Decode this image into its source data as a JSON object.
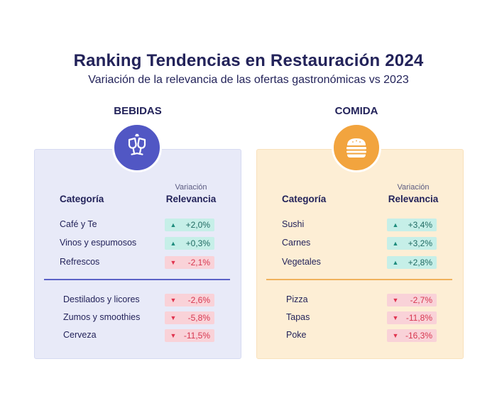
{
  "title": "Ranking Tendencias en Restauración 2024",
  "subtitle": "Variación de la relevancia de las ofertas gastronómicas vs 2023",
  "colors": {
    "bebidas_accent": "#5157c4",
    "comida_accent": "#f2a43e",
    "positive": "#c6efe8",
    "negative": "#f9d2d8"
  },
  "chart_data": [
    {
      "type": "table",
      "title": "BEBIDAS",
      "icon": "wine-glasses-icon",
      "columns": [
        "Categoría",
        "Variación Relevancia"
      ],
      "col_category": "Categoría",
      "col_variation": "Variación",
      "col_relevance": "Relevancia",
      "rows": [
        {
          "category": "Café y Te",
          "value": 2.0,
          "label": "+2,0%",
          "direction": "up"
        },
        {
          "category": "Vinos y espumosos",
          "value": 0.3,
          "label": "+0,3%",
          "direction": "up"
        },
        {
          "category": "Refrescos",
          "value": -2.1,
          "label": "-2,1%",
          "direction": "down"
        },
        {
          "category": "Destilados y licores",
          "value": -2.6,
          "label": "-2,6%",
          "direction": "down"
        },
        {
          "category": "Zumos y smoothies",
          "value": -5.8,
          "label": "-5,8%",
          "direction": "down"
        },
        {
          "category": "Cerveza",
          "value": -11.5,
          "label": "-11,5%",
          "direction": "down"
        }
      ]
    },
    {
      "type": "table",
      "title": "COMIDA",
      "icon": "burger-icon",
      "columns": [
        "Categoría",
        "Variación Relevancia"
      ],
      "col_category": "Categoría",
      "col_variation": "Variación",
      "col_relevance": "Relevancia",
      "rows": [
        {
          "category": "Sushi",
          "value": 3.4,
          "label": "+3,4%",
          "direction": "up"
        },
        {
          "category": "Carnes",
          "value": 3.2,
          "label": "+3,2%",
          "direction": "up"
        },
        {
          "category": "Vegetales",
          "value": 2.8,
          "label": "+2,8%",
          "direction": "up"
        },
        {
          "category": "Pizza",
          "value": -2.7,
          "label": "-2,7%",
          "direction": "down"
        },
        {
          "category": "Tapas",
          "value": -11.8,
          "label": "-11,8%",
          "direction": "down"
        },
        {
          "category": "Poke",
          "value": -16.3,
          "label": "-16,3%",
          "direction": "down"
        }
      ]
    }
  ],
  "arrows": {
    "up": "▲",
    "down": "▼"
  }
}
